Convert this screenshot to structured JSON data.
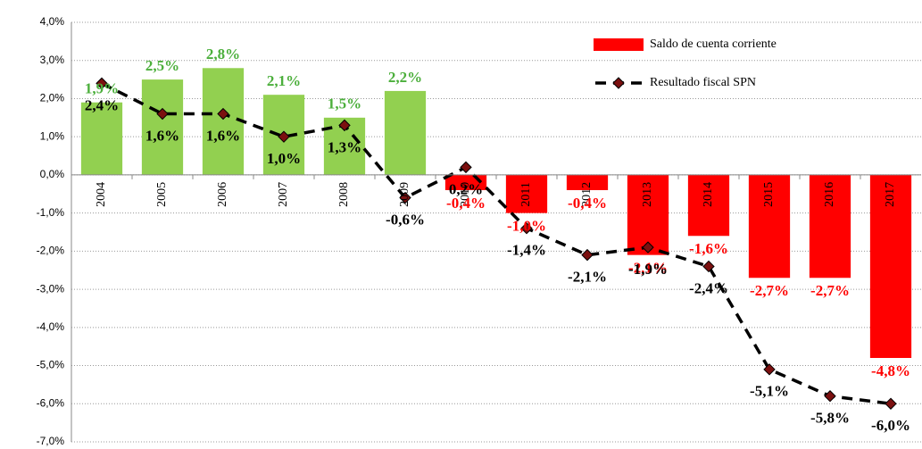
{
  "chart_data": {
    "type": "bar",
    "categories": [
      "2004",
      "2005",
      "2006",
      "2007",
      "2008",
      "2009",
      "2010",
      "2011",
      "2012",
      "2013",
      "2014",
      "2015",
      "2016",
      "2017"
    ],
    "series": [
      {
        "name": "Saldo de cuenta corriente",
        "type": "bar",
        "color": "#ff0000",
        "positive_color": "#92d050",
        "values": [
          1.9,
          2.5,
          2.8,
          2.1,
          1.5,
          2.2,
          -0.4,
          -1.0,
          -0.4,
          -2.1,
          -1.6,
          -2.7,
          -2.7,
          -4.8
        ],
        "value_labels": [
          "1,9%",
          "2,5%",
          "2,8%",
          "2,1%",
          "1,5%",
          "2,2%",
          "-0,4%",
          "-1,0%",
          "-0,4%",
          "-2,1%",
          "-1,6%",
          "-2,7%",
          "-2,7%",
          "-4,8%"
        ]
      },
      {
        "name": "Resultado fiscal SPN",
        "type": "line",
        "color": "#000000",
        "marker_color": "#7b1010",
        "values": [
          2.4,
          1.6,
          1.6,
          1.0,
          1.3,
          -0.6,
          0.2,
          -1.4,
          -2.1,
          -1.9,
          -2.4,
          -5.1,
          -5.8,
          -6.0
        ],
        "value_labels": [
          "2,4%",
          "1,6%",
          "1,6%",
          "1,0%",
          "1,3%",
          "-0,6%",
          "0,2%",
          "-1,4%",
          "-2,1%",
          "-1,9%",
          "-2,4%",
          "-5,1%",
          "-5,8%",
          "-6,0%"
        ]
      }
    ],
    "ylim": [
      -7,
      4
    ],
    "yticks": [
      {
        "value": -7,
        "label": "-7,0%"
      },
      {
        "value": -6,
        "label": "-6,0%"
      },
      {
        "value": -5,
        "label": "-5,0%"
      },
      {
        "value": -4,
        "label": "-4,0%"
      },
      {
        "value": -3,
        "label": "-3,0%"
      },
      {
        "value": -2,
        "label": "-2,0%"
      },
      {
        "value": -1,
        "label": "-1,0%"
      },
      {
        "value": 0,
        "label": "0,0%"
      },
      {
        "value": 1,
        "label": "1,0%"
      },
      {
        "value": 2,
        "label": "2,0%"
      },
      {
        "value": 3,
        "label": "3,0%"
      },
      {
        "value": 4,
        "label": "4,0%"
      }
    ],
    "grid": true
  }
}
